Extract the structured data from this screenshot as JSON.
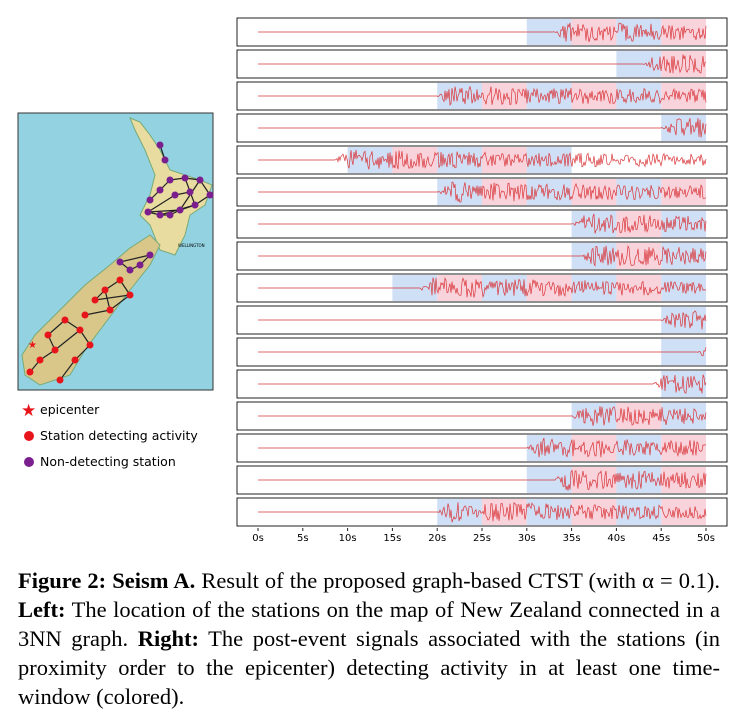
{
  "figure": {
    "legend": [
      "epicenter",
      "Station detecting activity",
      "Non-detecting station"
    ],
    "legend_colors": [
      "#e8141c",
      "#e8141c",
      "#7b1f8f"
    ],
    "map_label": "WELLINGTON",
    "chart_data": {
      "type": "seismograms",
      "xlim": [
        0,
        50
      ],
      "xticks": [
        {
          "value": 0,
          "label": "0s"
        },
        {
          "value": 5,
          "label": "5s"
        },
        {
          "value": 10,
          "label": "10s"
        },
        {
          "value": 15,
          "label": "15s"
        },
        {
          "value": 20,
          "label": "20s"
        },
        {
          "value": 25,
          "label": "25s"
        },
        {
          "value": 30,
          "label": "30s"
        },
        {
          "value": 35,
          "label": "35s"
        },
        {
          "value": 40,
          "label": "40s"
        },
        {
          "value": 45,
          "label": "45s"
        },
        {
          "value": 50,
          "label": "50s"
        }
      ],
      "window_colors": [
        "#cfdff5",
        "#f8d3db"
      ],
      "signal_color": "#d9363a",
      "panels": [
        {
          "onset": 33,
          "windows": [
            [
              30,
              35
            ],
            [
              35,
              40
            ],
            [
              40,
              45
            ],
            [
              45,
              50
            ]
          ]
        },
        {
          "onset": 43,
          "windows": [
            [
              40,
              45
            ],
            [
              45,
              50
            ]
          ]
        },
        {
          "onset": 20,
          "windows": [
            [
              20,
              25
            ],
            [
              25,
              30
            ],
            [
              30,
              35
            ],
            [
              35,
              40
            ],
            [
              40,
              45
            ],
            [
              45,
              50
            ]
          ]
        },
        {
          "onset": 45,
          "windows": [
            [
              45,
              50
            ]
          ]
        },
        {
          "onset": 8.5,
          "windows": [
            [
              10,
              15
            ],
            [
              15,
              20
            ],
            [
              20,
              25
            ],
            [
              25,
              30
            ],
            [
              30,
              35
            ]
          ]
        },
        {
          "onset": 20,
          "windows": [
            [
              20,
              25
            ],
            [
              25,
              30
            ],
            [
              30,
              35
            ],
            [
              35,
              40
            ],
            [
              40,
              45
            ],
            [
              45,
              50
            ]
          ]
        },
        {
          "onset": 35,
          "windows": [
            [
              35,
              40
            ],
            [
              40,
              45
            ],
            [
              45,
              50
            ]
          ]
        },
        {
          "onset": 36,
          "windows": [
            [
              35,
              40
            ],
            [
              40,
              45
            ],
            [
              45,
              50
            ]
          ]
        },
        {
          "onset": 18,
          "windows": [
            [
              15,
              20
            ],
            [
              20,
              25
            ],
            [
              25,
              30
            ],
            [
              30,
              35
            ],
            [
              35,
              40
            ],
            [
              40,
              45
            ],
            [
              45,
              50
            ]
          ]
        },
        {
          "onset": 45,
          "windows": [
            [
              45,
              50
            ]
          ]
        },
        {
          "onset": 49,
          "windows": [
            [
              45,
              50
            ]
          ]
        },
        {
          "onset": 44,
          "windows": [
            [
              45,
              50
            ]
          ]
        },
        {
          "onset": 35,
          "windows": [
            [
              35,
              40
            ],
            [
              40,
              45
            ],
            [
              45,
              50
            ]
          ]
        },
        {
          "onset": 30,
          "windows": [
            [
              30,
              35
            ],
            [
              35,
              40
            ],
            [
              40,
              45
            ],
            [
              45,
              50
            ]
          ]
        },
        {
          "onset": 33,
          "windows": [
            [
              30,
              35
            ],
            [
              35,
              40
            ],
            [
              40,
              45
            ],
            [
              45,
              50
            ]
          ]
        },
        {
          "onset": 20,
          "windows": [
            [
              20,
              25
            ],
            [
              25,
              30
            ],
            [
              30,
              35
            ],
            [
              35,
              40
            ],
            [
              40,
              45
            ],
            [
              45,
              50
            ]
          ]
        }
      ]
    },
    "caption": {
      "label": "Figure 2:",
      "title": "Seism A.",
      "text1": "Result of the proposed graph-based CTST (with α = 0.1).",
      "left_label": "Left:",
      "text2": "The location of the stations on the map of New Zealand connected in a 3NN graph.",
      "right_label": "Right:",
      "text3": "The post-event signals associated with the stations (in proximity order to the epicenter) detecting activity in at least one time-window (colored)."
    }
  }
}
